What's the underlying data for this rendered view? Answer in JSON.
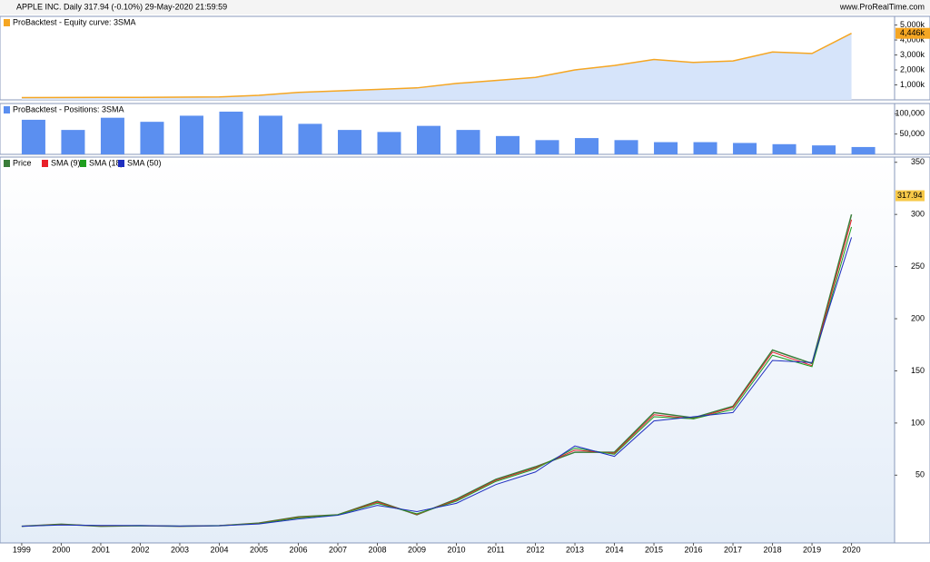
{
  "header": {
    "title": "APPLE INC. Daily 317.94 (-0.10%) 29-May-2020 21:59:59",
    "site": "www.ProRealTime.com"
  },
  "chart_data": [
    {
      "type": "area",
      "title": "ProBacktest - Equity curve: 3SMA",
      "x": [
        1999,
        2000,
        2001,
        2002,
        2003,
        2004,
        2005,
        2006,
        2007,
        2008,
        2009,
        2010,
        2011,
        2012,
        2013,
        2014,
        2015,
        2016,
        2017,
        2018,
        2019,
        2020
      ],
      "values": [
        150,
        160,
        170,
        170,
        180,
        200,
        300,
        500,
        600,
        700,
        800,
        1100,
        1300,
        1500,
        2000,
        2300,
        2700,
        2500,
        2600,
        3200,
        3100,
        4446
      ],
      "color": "#f5a623",
      "fill": "#d6e4fa",
      "last_value": {
        "value": 4446,
        "label": "4,446k"
      },
      "xlim": [
        1998.45,
        2021.09
      ],
      "ylim": [
        0,
        5580
      ],
      "yticks": [
        {
          "value": 1000,
          "label": "1,000k"
        },
        {
          "value": 2000,
          "label": "2,000k"
        },
        {
          "value": 3000,
          "label": "3,000k"
        },
        {
          "value": 4000,
          "label": "4,000k"
        },
        {
          "value": 5000,
          "label": "5,000k"
        }
      ]
    },
    {
      "type": "bar",
      "title": "ProBacktest - Positions: 3SMA",
      "x": [
        1999,
        2000,
        2001,
        2002,
        2003,
        2004,
        2005,
        2006,
        2007,
        2008,
        2009,
        2010,
        2011,
        2012,
        2013,
        2014,
        2015,
        2016,
        2017,
        2018,
        2019,
        2020
      ],
      "values": [
        85000,
        60000,
        90000,
        80000,
        95000,
        105000,
        95000,
        75000,
        60000,
        55000,
        70000,
        60000,
        45000,
        35000,
        40000,
        35000,
        30000,
        30000,
        28000,
        25000,
        22000,
        18000
      ],
      "color": "#5b8ff0",
      "xlim": [
        1998.45,
        2021.09
      ],
      "ylim": [
        0,
        125000
      ],
      "yticks": [
        {
          "value": 50000,
          "label": "50,000"
        },
        {
          "value": 100000,
          "label": "100,000"
        }
      ]
    },
    {
      "type": "line",
      "x": [
        1999,
        2000,
        2001,
        2002,
        2003,
        2004,
        2005,
        2006,
        2007,
        2008,
        2009,
        2010,
        2011,
        2012,
        2013,
        2014,
        2015,
        2016,
        2017,
        2018,
        2019,
        2020
      ],
      "series": [
        {
          "name": "Price",
          "color": "#3a7d3a",
          "values": [
            1,
            3,
            1,
            1.5,
            1,
            1.5,
            4,
            10,
            12,
            25,
            12,
            27,
            46,
            58,
            72,
            72,
            110,
            105,
            116,
            170,
            157,
            300
          ]
        },
        {
          "name": "SMA (9)",
          "color": "#e8202a",
          "values": [
            1,
            2.8,
            1.2,
            1.5,
            1,
            1.6,
            3.8,
            9.5,
            12,
            24,
            12.5,
            26,
            45,
            57,
            74,
            71,
            108,
            104,
            115,
            168,
            155,
            295
          ]
        },
        {
          "name": "SMA (18)",
          "color": "#1f9e1f",
          "values": [
            1,
            2.6,
            1.4,
            1.5,
            1.1,
            1.6,
            3.6,
            9,
            12,
            23,
            13,
            25,
            44,
            56,
            76,
            70,
            106,
            104,
            113,
            165,
            154,
            288
          ]
        },
        {
          "name": "SMA (50)",
          "color": "#1f2fbf",
          "values": [
            1,
            2.2,
            1.8,
            1.6,
            1.2,
            1.5,
            3.2,
            8,
            11.5,
            21,
            15,
            23,
            41,
            53,
            78,
            68,
            102,
            106,
            110,
            160,
            158,
            278
          ]
        }
      ],
      "last_value": 317.94,
      "xlim": [
        1998.45,
        2021.09
      ],
      "ylim": [
        -15,
        355
      ],
      "yticks": [
        50,
        100,
        150,
        200,
        250,
        300,
        350
      ],
      "xticks": [
        1999,
        2000,
        2001,
        2002,
        2003,
        2004,
        2005,
        2006,
        2007,
        2008,
        2009,
        2010,
        2011,
        2012,
        2013,
        2014,
        2015,
        2016,
        2017,
        2018,
        2019,
        2020
      ]
    }
  ]
}
